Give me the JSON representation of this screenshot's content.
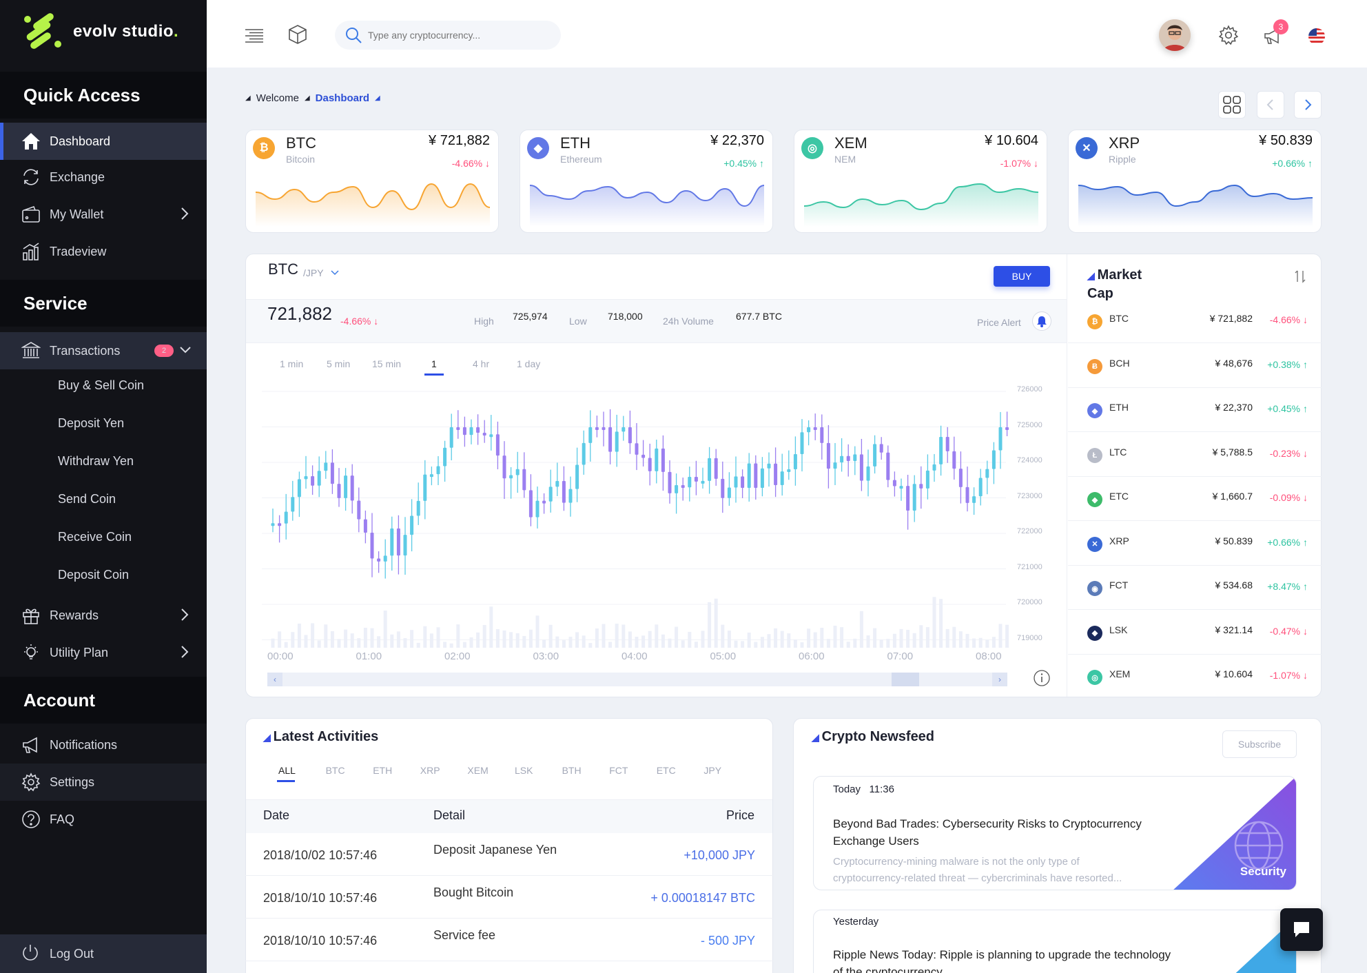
{
  "brand": {
    "name": "evolv studio",
    "dot": "."
  },
  "sidebar": {
    "quick_access": "Quick Access",
    "service": "Service",
    "account": "Account",
    "dashboard": "Dashboard",
    "exchange": "Exchange",
    "wallet": "My Wallet",
    "tradeview": "Tradeview",
    "transactions": "Transactions",
    "transactions_badge": "2",
    "sub": [
      "Buy & Sell Coin",
      "Deposit Yen",
      "Withdraw Yen",
      "Send Coin",
      "Receive Coin",
      "Deposit Coin"
    ],
    "rewards": "Rewards",
    "utility": "Utility Plan",
    "notifications": "Notifications",
    "settings": "Settings",
    "faq": "FAQ",
    "logout": "Log Out"
  },
  "topbar": {
    "search_placeholder": "Type any cryptocurrency...",
    "notif_count": "3"
  },
  "breadcrumb": {
    "welcome": "Welcome",
    "current": "Dashboard"
  },
  "tickers": [
    {
      "sym": "BTC",
      "name": "Bitcoin",
      "price": "¥ 721,882",
      "change": "-4.66% ↓",
      "dir": "dn",
      "color": "#f7a532",
      "glyph": "₿",
      "spark": [
        30,
        40,
        26,
        44,
        30,
        22,
        52,
        28,
        55,
        18,
        52,
        18,
        52
      ]
    },
    {
      "sym": "ETH",
      "name": "Ethereum",
      "price": "¥ 22,370",
      "change": "+0.45% ↑",
      "dir": "up",
      "color": "#6278e6",
      "glyph": "◆",
      "spark": [
        20,
        35,
        40,
        28,
        22,
        38,
        30,
        45,
        28,
        42,
        25,
        50,
        20
      ]
    },
    {
      "sym": "XEM",
      "name": "NEM",
      "price": "¥ 10.604",
      "change": "-1.07% ↓",
      "dir": "dn",
      "color": "#3cc6a4",
      "glyph": "◎",
      "spark": [
        50,
        44,
        52,
        40,
        48,
        42,
        55,
        46,
        22,
        18,
        30,
        25,
        30
      ]
    },
    {
      "sym": "XRP",
      "name": "Ripple",
      "price": "¥ 50.839",
      "change": "+0.66% ↑",
      "dir": "up",
      "color": "#3a6ad6",
      "glyph": "✕",
      "spark": [
        20,
        26,
        22,
        34,
        30,
        50,
        44,
        28,
        20,
        36,
        32,
        40,
        38
      ]
    }
  ],
  "trade": {
    "pair": "BTC",
    "quote": "/JPY",
    "buy": "BUY",
    "price": "721,882",
    "change": "-4.66% ↓",
    "high_label": "High",
    "high": "725,974",
    "low_label": "Low",
    "low": "718,000",
    "vol_label": "24h Volume",
    "vol": "677.7 BTC",
    "alert": "Price Alert",
    "timeframes": [
      "1 min",
      "5 min",
      "15 min",
      "1",
      "4 hr",
      "1 day"
    ],
    "yticks": [
      "726000",
      "725000",
      "724000",
      "723000",
      "722000",
      "721000",
      "720000",
      "719000"
    ],
    "xticks": [
      "00:00",
      "01:00",
      "02:00",
      "03:00",
      "04:00",
      "05:00",
      "06:00",
      "07:00",
      "08:00"
    ]
  },
  "market": {
    "title": "Market",
    "title2": "Cap",
    "rows": [
      {
        "sym": "BTC",
        "price": "¥ 721,882",
        "change": "-4.66% ↓",
        "dir": "dn",
        "color": "#f7a532",
        "glyph": "₿"
      },
      {
        "sym": "BCH",
        "price": "¥ 48,676",
        "change": "+0.38% ↑",
        "dir": "up",
        "color": "#f59a3a",
        "glyph": "Ƀ"
      },
      {
        "sym": "ETH",
        "price": "¥ 22,370",
        "change": "+0.45% ↑",
        "dir": "up",
        "color": "#6278e6",
        "glyph": "◆"
      },
      {
        "sym": "LTC",
        "price": "¥ 5,788.5",
        "change": "-0.23% ↓",
        "dir": "dn",
        "color": "#b8bcc8",
        "glyph": "Ł"
      },
      {
        "sym": "ETC",
        "price": "¥ 1,660.7",
        "change": "-0.09% ↓",
        "dir": "dn",
        "color": "#3dbb6a",
        "glyph": "◆"
      },
      {
        "sym": "XRP",
        "price": "¥ 50.839",
        "change": "+0.66% ↑",
        "dir": "up",
        "color": "#3a6ad6",
        "glyph": "✕"
      },
      {
        "sym": "FCT",
        "price": "¥ 534.68",
        "change": "+8.47% ↑",
        "dir": "up",
        "color": "#5b7bb8",
        "glyph": "◉"
      },
      {
        "sym": "LSK",
        "price": "¥ 321.14",
        "change": "-0.47% ↓",
        "dir": "dn",
        "color": "#1b2a5c",
        "glyph": "◆"
      },
      {
        "sym": "XEM",
        "price": "¥ 10.604",
        "change": "-1.07% ↓",
        "dir": "dn",
        "color": "#3cc6a4",
        "glyph": "◎"
      }
    ]
  },
  "activities": {
    "title": "Latest Activities",
    "tabs": [
      "ALL",
      "BTC",
      "ETH",
      "XRP",
      "XEM",
      "LSK",
      "BTH",
      "FCT",
      "ETC",
      "JPY"
    ],
    "headers": {
      "date": "Date",
      "detail": "Detail",
      "price": "Price"
    },
    "rows": [
      {
        "date": "2018/10/02 10:57:46",
        "detail": "Deposit Japanese Yen",
        "price": "+10,000 JPY"
      },
      {
        "date": "2018/10/10 10:57:46",
        "detail": "Bought Bitcoin",
        "price": "+ 0.00018147 BTC"
      },
      {
        "date": "2018/10/10 10:57:46",
        "detail": "Service fee",
        "price": "- 500 JPY"
      }
    ]
  },
  "news": {
    "title": "Crypto Newsfeed",
    "subscribe": "Subscribe",
    "items": [
      {
        "when": "Today",
        "time": "11:36",
        "headline1": "Beyond Bad Trades: Cybersecurity Risks to Cryptocurrency",
        "headline2": "Exchange Users",
        "excerpt1": "Cryptocurrency-mining malware is not the only type of",
        "excerpt2": "cryptocurrency-related threat — cybercriminals have resorted...",
        "tag": "Security"
      },
      {
        "when": "Yesterday",
        "headline1": "Ripple News Today: Ripple is planning to upgrade the technology",
        "headline2": "of the cryptocurrency"
      }
    ]
  }
}
